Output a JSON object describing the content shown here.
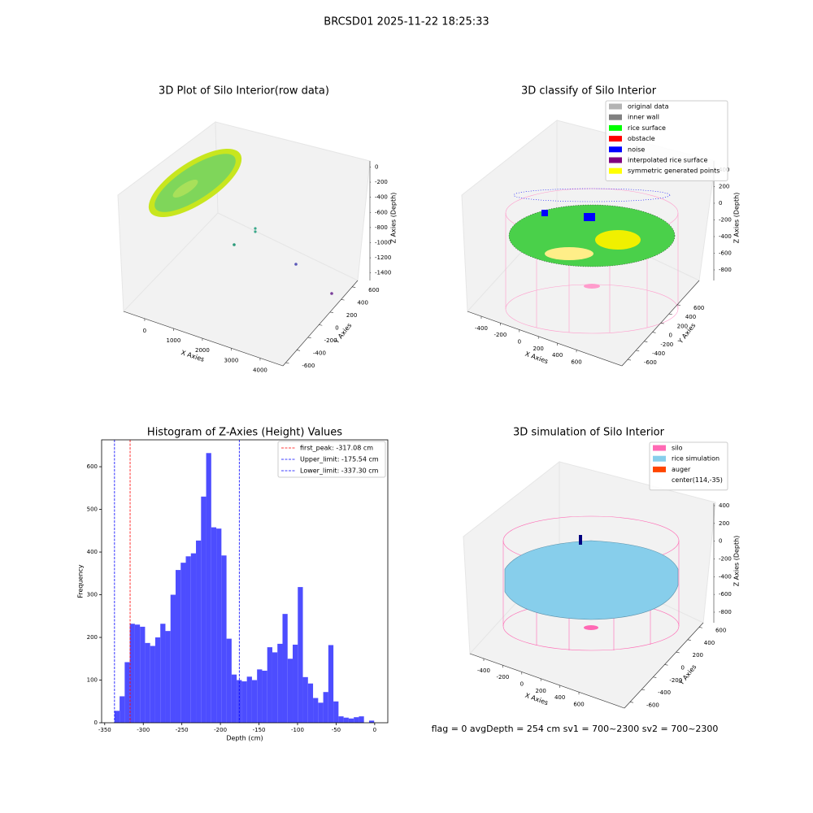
{
  "title": "BRCSD01 2025-11-22 18:25:33",
  "footer": "flag = 0     avgDepth = 254 cm  sv1 = 700~2300  sv2 = 700~2300",
  "chart_data": [
    {
      "type": "scatter3d",
      "title": "3D Plot of Silo Interior(row data)",
      "xlabel": "X Axies",
      "ylabel": "Y Axies",
      "zlabel": "Z Axies (Depth)",
      "xlim": [
        -730,
        4790
      ],
      "xticks": [
        0,
        1000,
        2000,
        3000,
        4000
      ],
      "ylim": [
        -650,
        700
      ],
      "yticks": [
        -600,
        -400,
        -200,
        0,
        200,
        400,
        600
      ],
      "zlim": [
        -1500,
        80
      ],
      "zticks": [
        0,
        -200,
        -400,
        -600,
        -800,
        -1000,
        -1200,
        -1400
      ]
    },
    {
      "type": "scatter3d",
      "title": "3D classify of Silo Interior",
      "xlabel": "X Axies",
      "ylabel": "Y Axies",
      "zlabel": "Z Axies (Depth)",
      "xlim": [
        -545,
        1078
      ],
      "xticks": [
        -400,
        -200,
        0,
        200,
        400,
        600
      ],
      "ylim": [
        -738,
        1131
      ],
      "yticks": [
        -600,
        -400,
        -200,
        0,
        200,
        400,
        600
      ],
      "zlim": [
        -927,
        507
      ],
      "zticks": [
        400,
        200,
        0,
        -200,
        -400,
        -600,
        -800
      ],
      "legend": [
        {
          "name": "original data",
          "color": "#b3b3b3"
        },
        {
          "name": "inner wall",
          "color": "#808080"
        },
        {
          "name": "rice surface",
          "color": "#00ff00"
        },
        {
          "name": "obstacle",
          "color": "#ff0000"
        },
        {
          "name": "noise",
          "color": "#0000ff"
        },
        {
          "name": "interpolated rice surface",
          "color": "#800080"
        },
        {
          "name": "symmetric generated points",
          "color": "#ffff00"
        }
      ]
    },
    {
      "type": "histogram",
      "title": "Histogram of Z-Axies (Height) Values",
      "xlabel": "Depth (cm)",
      "ylabel": "Frequency",
      "color": "#4d4dff",
      "bins": [
        -337.3,
        -330.7,
        -324.1,
        -317.5,
        -310.9,
        -304.3,
        -297.7,
        -291.1,
        -284.5,
        -277.9,
        -271.3,
        -264.7,
        -258.1,
        -251.5,
        -244.9,
        -238.3,
        -231.7,
        -225.1,
        -218.5,
        -211.9,
        -205.3,
        -198.7,
        -192.1,
        -185.5,
        -178.9,
        -172.3,
        -165.7,
        -159.1,
        -152.5,
        -145.9,
        -139.3,
        -132.7,
        -126.1,
        -119.5,
        -112.9,
        -106.3,
        -99.7,
        -93.1,
        -86.5,
        -79.9,
        -73.3,
        -66.7,
        -60.1,
        -53.5,
        -46.9,
        -40.3,
        -33.7,
        -27.1,
        -20.5,
        -13.9,
        -7.3,
        -0.7
      ],
      "counts": [
        28,
        62,
        142,
        232,
        230,
        225,
        187,
        180,
        200,
        232,
        215,
        300,
        358,
        375,
        390,
        397,
        427,
        530,
        632,
        458,
        455,
        392,
        197,
        113,
        100,
        97,
        108,
        100,
        125,
        122,
        177,
        165,
        185,
        255,
        150,
        183,
        318,
        107,
        92,
        58,
        47,
        72,
        182,
        50,
        15,
        12,
        10,
        13,
        15,
        0,
        5
      ],
      "xlim": [
        -354,
        17
      ],
      "xticks": [
        -350,
        -300,
        -250,
        -200,
        -150,
        -100,
        -50,
        0
      ],
      "ylim": [
        0,
        663
      ],
      "yticks": [
        0,
        100,
        200,
        300,
        400,
        500,
        600
      ],
      "lines": [
        {
          "label": "first_peak: -317.08 cm",
          "value": -317.08,
          "color": "#ff0000"
        },
        {
          "label": "Upper_limit: -175.54 cm",
          "value": -175.54,
          "color": "#0000ff"
        },
        {
          "label": "Lower_limit: -337.30 cm",
          "value": -337.3,
          "color": "#0000ff"
        }
      ]
    },
    {
      "type": "scatter3d",
      "title": "3D simulation of Silo Interior",
      "xlabel": "X Axies",
      "ylabel": "Y Axies",
      "zlabel": "Z Axies (Depth)",
      "xlim": [
        -545,
        1078
      ],
      "xticks": [
        -400,
        -200,
        0,
        200,
        400,
        600
      ],
      "ylim": [
        -699,
        671
      ],
      "yticks": [
        -600,
        -400,
        -200,
        0,
        200,
        400,
        600
      ],
      "zlim": [
        -919,
        427
      ],
      "zticks": [
        400,
        200,
        0,
        -200,
        -400,
        -600,
        -800
      ],
      "legend": [
        {
          "name": "silo",
          "color": "#ff69b4"
        },
        {
          "name": "rice simulation",
          "color": "#87ceeb"
        },
        {
          "name": "auger",
          "color": "#ff4500"
        },
        {
          "name": "center(114,-35)",
          "color": "#ffffff"
        }
      ]
    }
  ]
}
